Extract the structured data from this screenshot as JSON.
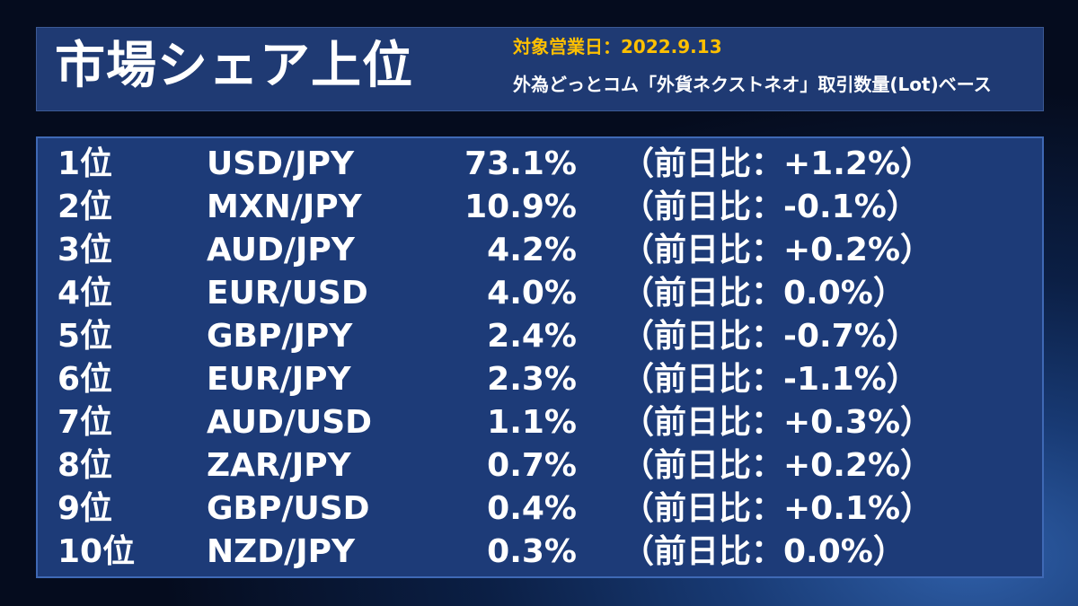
{
  "header": {
    "title": "市場シェア上位",
    "date_line": "対象営業日：2022.9.13",
    "basis_line": "外為どっとコム「外貨ネクストネオ」取引数量(Lot)ベース"
  },
  "rows": [
    {
      "rank": "1位",
      "pair": "USD/JPY",
      "share": "73.1%",
      "change": "（前日比：+1.2%）"
    },
    {
      "rank": "2位",
      "pair": "MXN/JPY",
      "share": "10.9%",
      "change": "（前日比：-0.1%）"
    },
    {
      "rank": "3位",
      "pair": "AUD/JPY",
      "share": "4.2%",
      "change": "（前日比：+0.2%）"
    },
    {
      "rank": "4位",
      "pair": "EUR/USD",
      "share": "4.0%",
      "change": "（前日比：0.0%）"
    },
    {
      "rank": "5位",
      "pair": "GBP/JPY",
      "share": "2.4%",
      "change": "（前日比：-0.7%）"
    },
    {
      "rank": "6位",
      "pair": "EUR/JPY",
      "share": "2.3%",
      "change": "（前日比：-1.1%）"
    },
    {
      "rank": "7位",
      "pair": "AUD/USD",
      "share": "1.1%",
      "change": "（前日比：+0.3%）"
    },
    {
      "rank": "8位",
      "pair": "ZAR/JPY",
      "share": "0.7%",
      "change": "（前日比：+0.2%）"
    },
    {
      "rank": "9位",
      "pair": "GBP/USD",
      "share": "0.4%",
      "change": "（前日比：+0.1%）"
    },
    {
      "rank": "10位",
      "pair": "NZD/JPY",
      "share": "0.3%",
      "change": "（前日比：0.0%）"
    }
  ]
}
